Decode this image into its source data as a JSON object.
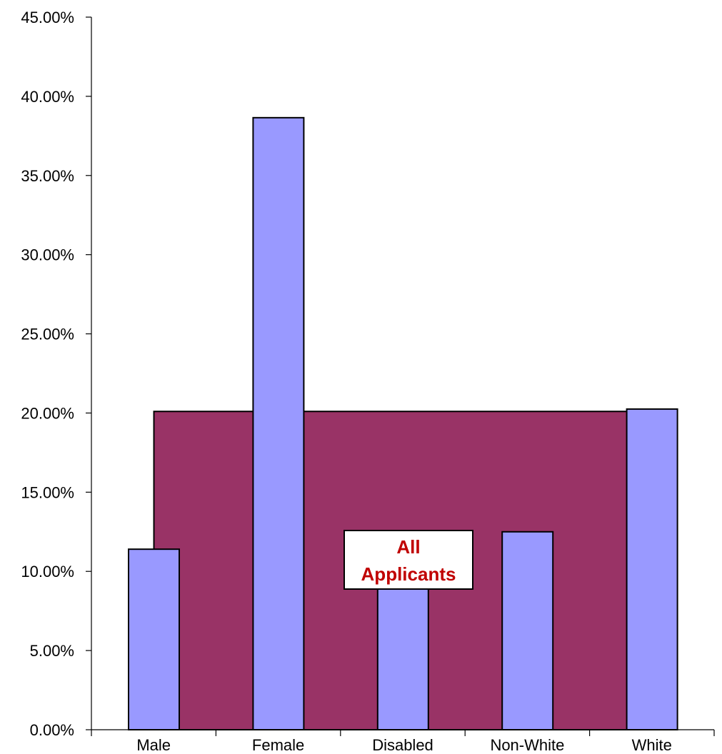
{
  "chart_data": {
    "type": "bar",
    "categories": [
      "Male",
      "Female",
      "Disabled",
      "Non-White",
      "White"
    ],
    "series": [
      {
        "values": [
          11.4,
          38.65,
          12.5,
          12.5,
          20.25
        ],
        "color": "#9999ff"
      }
    ],
    "reference_area": {
      "label_lines": [
        "All",
        "Applicants"
      ],
      "value": 20.1,
      "color": "#993366",
      "label_color": "#c00000"
    },
    "y_ticks": [
      "0.00%",
      "5.00%",
      "10.00%",
      "15.00%",
      "20.00%",
      "25.00%",
      "30.00%",
      "35.00%",
      "40.00%",
      "45.00%"
    ],
    "ylim": [
      0,
      45
    ],
    "title": "",
    "xlabel": "",
    "ylabel": "",
    "grid": false,
    "legend": "none"
  }
}
